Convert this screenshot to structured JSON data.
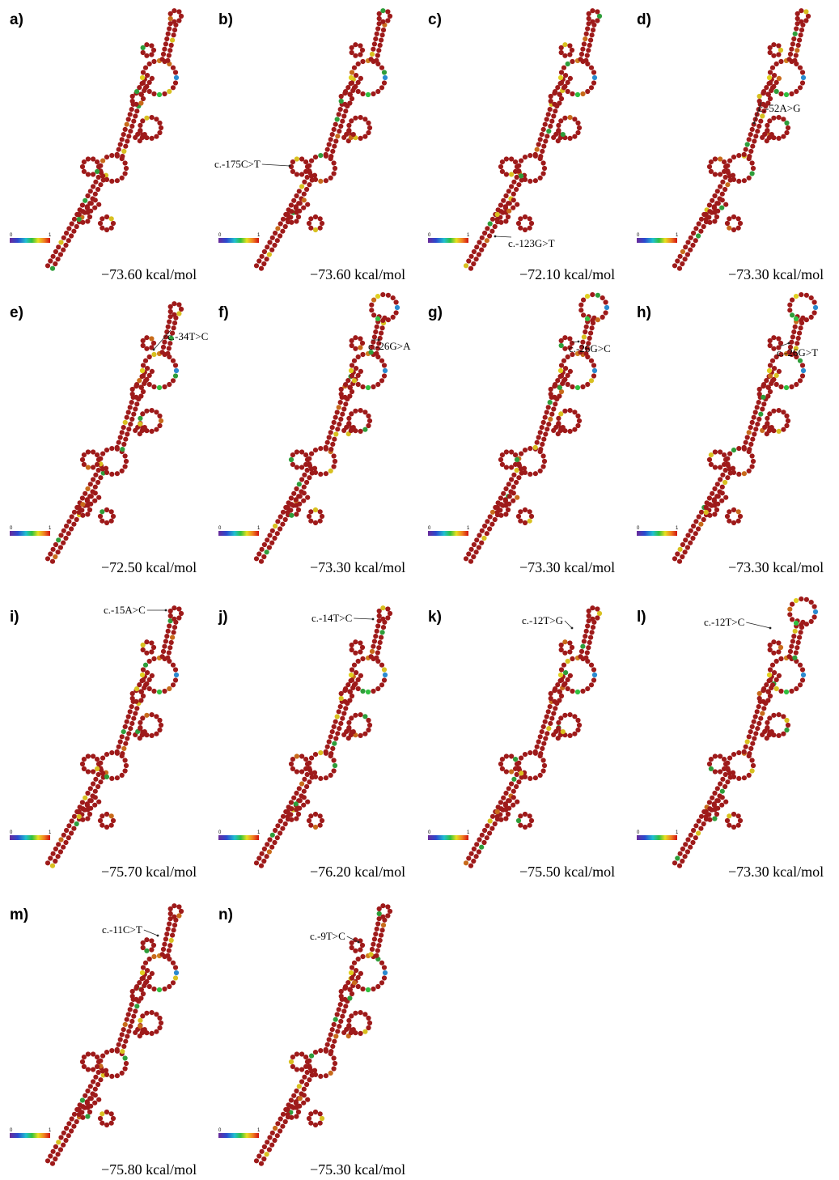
{
  "scale": {
    "min": "0",
    "max": "1"
  },
  "panels": [
    {
      "label": "a)",
      "energy": "−73.60 kcal/mol"
    },
    {
      "label": "b)",
      "mutation": "c.-175C>T",
      "energy": "−73.60 kcal/mol"
    },
    {
      "label": "c)",
      "mutation": "c.-123G>T",
      "energy": "−72.10 kcal/mol"
    },
    {
      "label": "d)",
      "mutation": "c.-52A>G",
      "energy": "−73.30 kcal/mol"
    },
    {
      "label": "e)",
      "mutation": "c.-34T>C",
      "energy": "−72.50 kcal/mol"
    },
    {
      "label": "f)",
      "mutation": "c.-26G>A",
      "energy": "−73.30 kcal/mol"
    },
    {
      "label": "g)",
      "mutation": "c.-26G>C",
      "energy": "−73.30 kcal/mol"
    },
    {
      "label": "h)",
      "mutation": "c.-26G>T",
      "energy": "−73.30 kcal/mol"
    },
    {
      "label": "i)",
      "mutation": "c.-15A>C",
      "energy": "−75.70 kcal/mol"
    },
    {
      "label": "j)",
      "mutation": "c.-14T>C",
      "energy": "−76.20 kcal/mol"
    },
    {
      "label": "k)",
      "mutation": "c.-12T>G",
      "energy": "−75.50 kcal/mol"
    },
    {
      "label": "l)",
      "mutation": "c.-12T>C",
      "energy": "−73.30 kcal/mol"
    },
    {
      "label": "m)",
      "mutation": "c.-11C>T",
      "energy": "−75.80 kcal/mol"
    },
    {
      "label": "n)",
      "mutation": "c.-9T>C",
      "energy": "−75.30 kcal/mol"
    }
  ]
}
